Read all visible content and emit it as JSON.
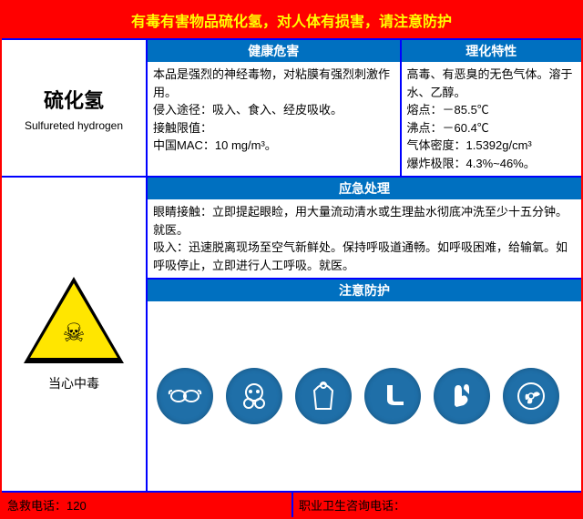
{
  "colors": {
    "border": "#ff0000",
    "divider": "#0000ff",
    "section_header_bg": "#0070c0",
    "section_header_fg": "#ffffff",
    "title_bg": "#ff0000",
    "title_fg": "#ffff00",
    "footer_bg": "#ff0000",
    "footer_fg": "#000000",
    "ppe_icon_bg": "#1f6fa8",
    "hazard_triangle_fill": "#ffe600",
    "hazard_triangle_border": "#000000"
  },
  "title": "有毒有害物品硫化氢，对人体有损害，请注意防护",
  "substance": {
    "name_cn": "硫化氢",
    "name_en": "Sulfureted hydrogen"
  },
  "sections": {
    "health": {
      "header": "健康危害",
      "body": "本品是强烈的神经毒物，对粘膜有强烈刺激作用。\n侵入途径：吸入、食入、经皮吸收。\n接触限值：\n中国MAC：10 mg/m³。"
    },
    "physical": {
      "header": "理化特性",
      "body": "高毒、有恶臭的无色气体。溶于水、乙醇。\n熔点：－85.5℃\n沸点：－60.4℃\n气体密度：1.5392g/cm³\n爆炸极限：4.3%~46%。"
    },
    "emergency": {
      "header": "应急处理",
      "body": "眼睛接触：立即提起眼睑，用大量流动清水或生理盐水彻底冲洗至少十五分钟。就医。\n吸入：迅速脱离现场至空气新鲜处。保持呼吸道通畅。如呼吸困难，给输氧。如呼吸停止，立即进行人工呼吸。就医。"
    },
    "protection": {
      "header": "注意防护",
      "icons": [
        {
          "name": "goggles-icon",
          "label": "护目镜"
        },
        {
          "name": "respirator-icon",
          "label": "防毒面具"
        },
        {
          "name": "suit-icon",
          "label": "防护服"
        },
        {
          "name": "boots-icon",
          "label": "防护靴"
        },
        {
          "name": "gloves-icon",
          "label": "防护手套"
        },
        {
          "name": "fan-icon",
          "label": "通风"
        }
      ]
    }
  },
  "hazard_sign": {
    "type": "warning-triangle",
    "symbol": "skull-crossbones",
    "label": "当心中毒"
  },
  "footer": {
    "emergency_tel_label": "急救电话：",
    "emergency_tel_value": "120",
    "consult_label": "职业卫生咨询电话："
  }
}
